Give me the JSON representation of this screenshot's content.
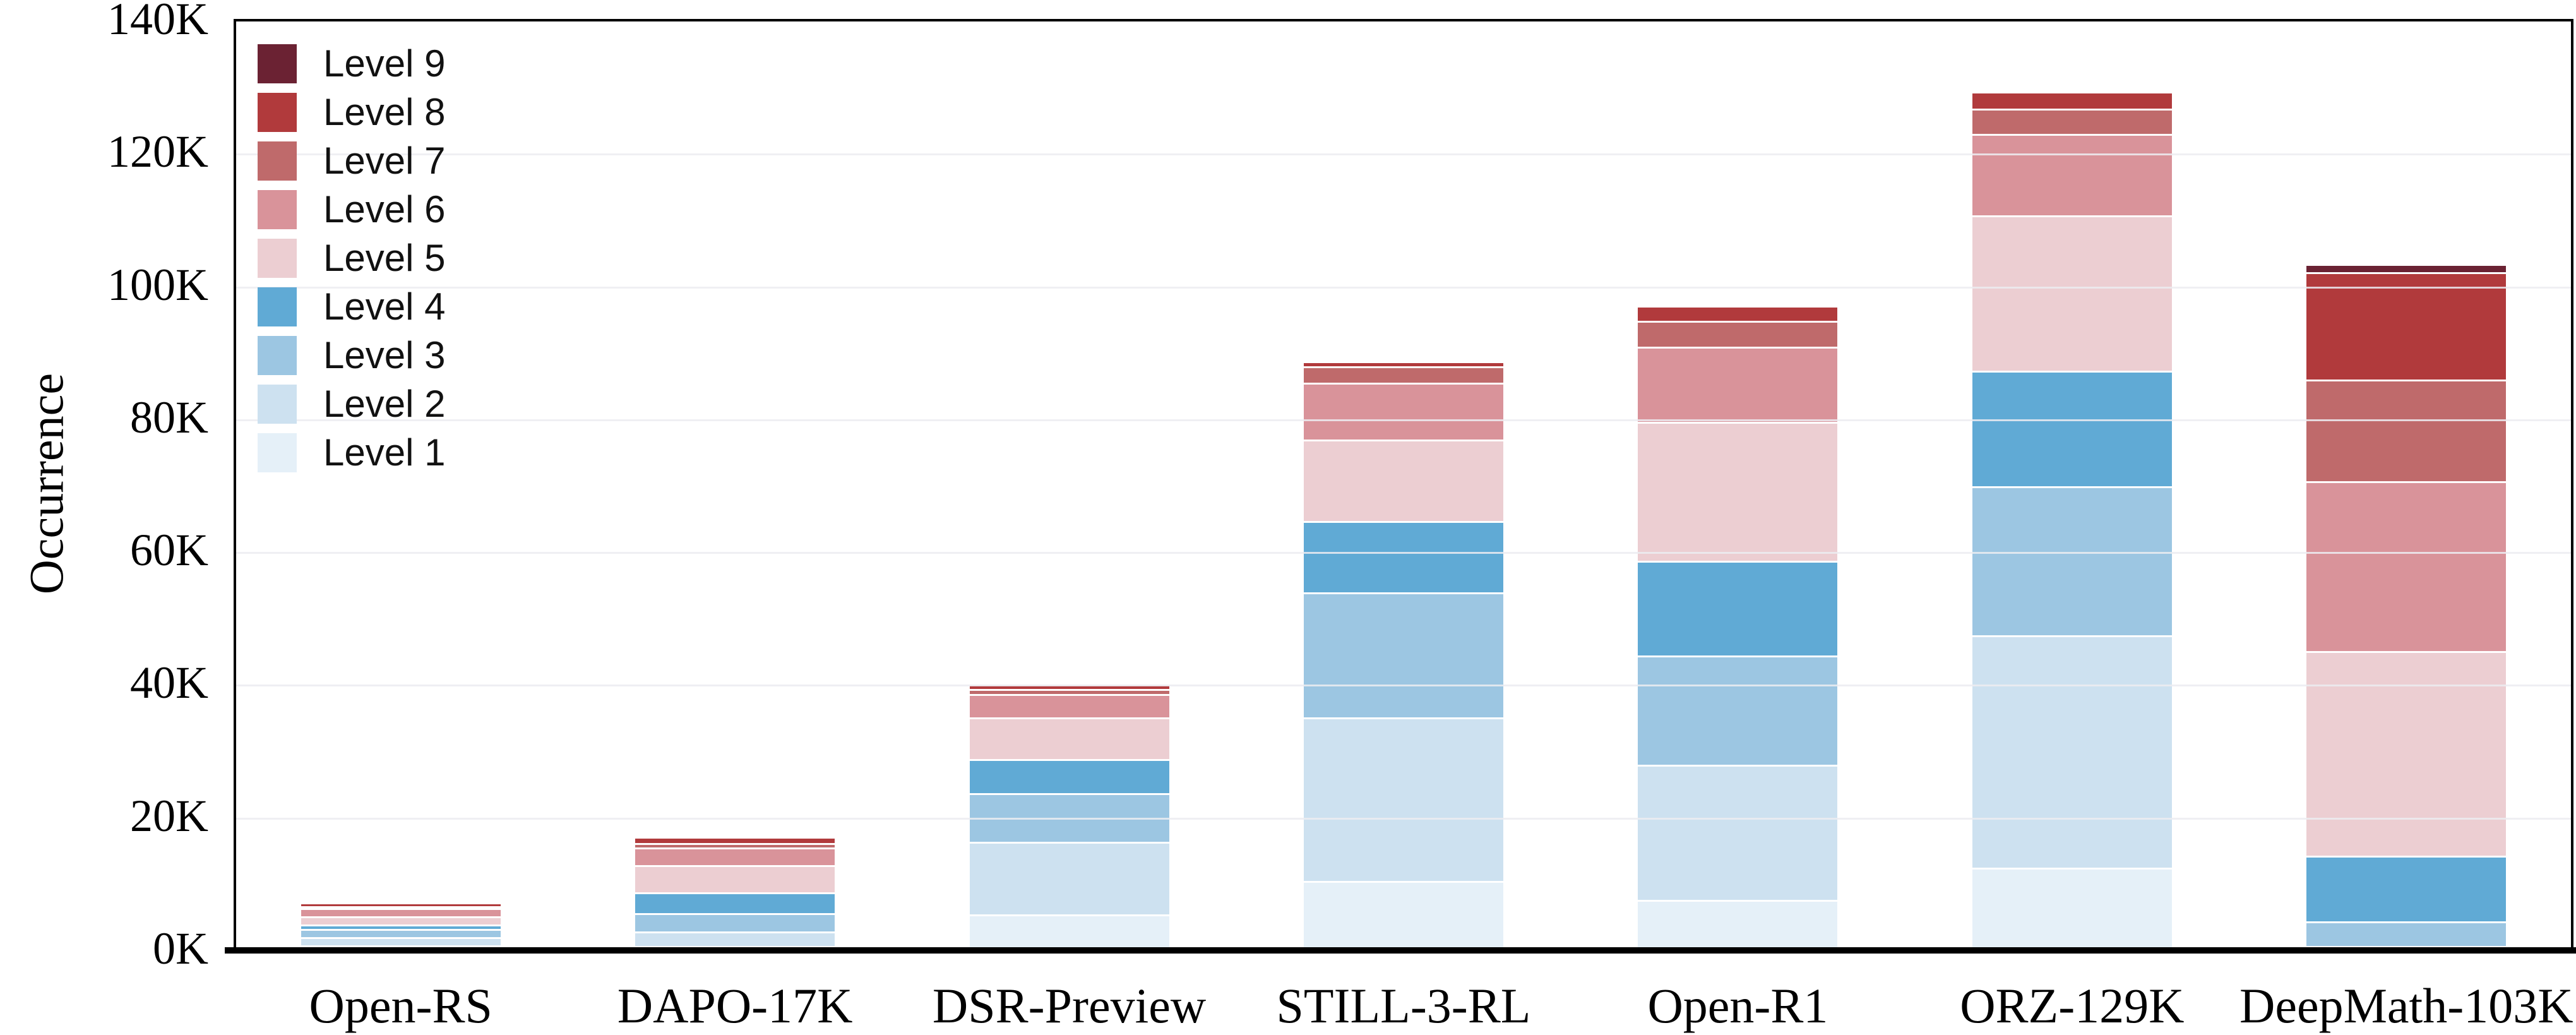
{
  "chart_data": {
    "type": "bar",
    "stacked": true,
    "title": "",
    "ylabel": "Occurrence",
    "xlabel": "",
    "ylim_k": [
      0,
      140
    ],
    "ytick_labels": [
      "0K",
      "20K",
      "40K",
      "60K",
      "80K",
      "100K",
      "120K",
      "140K"
    ],
    "grid": "horizontal",
    "legend_position": "upper-left",
    "legend_order_top_to_bottom": [
      "Level 9",
      "Level 8",
      "Level 7",
      "Level 6",
      "Level 5",
      "Level 4",
      "Level 3",
      "Level 2",
      "Level 1"
    ],
    "categories": [
      "Open-RS",
      "DAPO-17K",
      "DSR-Preview",
      "STILL-3-RL",
      "Open-R1",
      "ORZ-129K",
      "DeepMath-103K"
    ],
    "series": [
      {
        "name": "Level 1",
        "color": "#e5f0f8",
        "values_k": [
          0.45,
          0.4,
          5.1,
          10.2,
          7.3,
          12.2,
          0
        ]
      },
      {
        "name": "Level 2",
        "color": "#cde1f0",
        "values_k": [
          1.25,
          2.2,
          11.0,
          24.6,
          20.4,
          35.0,
          0.4
        ]
      },
      {
        "name": "Level 3",
        "color": "#9cc6e2",
        "values_k": [
          1.25,
          2.7,
          7.3,
          18.8,
          16.4,
          22.4,
          3.7
        ]
      },
      {
        "name": "Level 4",
        "color": "#60aad5",
        "values_k": [
          0.7,
          3.2,
          5.1,
          10.8,
          14.3,
          17.4,
          9.9
        ]
      },
      {
        "name": "Level 5",
        "color": "#ecced2",
        "values_k": [
          1.25,
          4.1,
          6.3,
          12.3,
          20.9,
          23.4,
          30.8
        ]
      },
      {
        "name": "Level 6",
        "color": "#d9939a",
        "values_k": [
          1.15,
          2.6,
          3.5,
          8.5,
          11.3,
          12.3,
          25.6
        ]
      },
      {
        "name": "Level 7",
        "color": "#bf6a6b",
        "values_k": [
          0.3,
          0.7,
          0.8,
          2.5,
          3.9,
          3.8,
          15.3
        ]
      },
      {
        "name": "Level 8",
        "color": "#b13a3c",
        "values_k": [
          0.6,
          0.9,
          0.8,
          0.8,
          2.3,
          2.6,
          16.2
        ]
      },
      {
        "name": "Level 9",
        "color": "#6b2233",
        "values_k": [
          0,
          0,
          0,
          0,
          0,
          0,
          1.2
        ]
      }
    ],
    "totals_k": [
      6.95,
      16.8,
      39.9,
      88.5,
      96.8,
      129.1,
      103.1
    ],
    "axis_color": "#000000",
    "gridline_color": "#ececf1",
    "background_color": "#ffffff"
  }
}
